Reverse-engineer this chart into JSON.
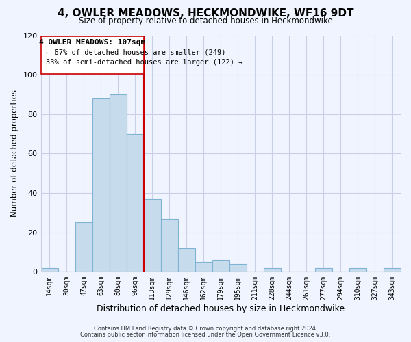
{
  "title": "4, OWLER MEADOWS, HECKMONDWIKE, WF16 9DT",
  "subtitle": "Size of property relative to detached houses in Heckmondwike",
  "xlabel": "Distribution of detached houses by size in Heckmondwike",
  "ylabel": "Number of detached properties",
  "bar_labels": [
    "14sqm",
    "30sqm",
    "47sqm",
    "63sqm",
    "80sqm",
    "96sqm",
    "113sqm",
    "129sqm",
    "146sqm",
    "162sqm",
    "179sqm",
    "195sqm",
    "211sqm",
    "228sqm",
    "244sqm",
    "261sqm",
    "277sqm",
    "294sqm",
    "310sqm",
    "327sqm",
    "343sqm"
  ],
  "bar_values": [
    2,
    0,
    25,
    88,
    90,
    70,
    37,
    27,
    12,
    5,
    6,
    4,
    0,
    2,
    0,
    0,
    2,
    0,
    2,
    0,
    2
  ],
  "bar_color": "#c6dcec",
  "bar_edge_color": "#7fb3d3",
  "vline_color": "#cc0000",
  "ylim": [
    0,
    120
  ],
  "yticks": [
    0,
    20,
    40,
    60,
    80,
    100,
    120
  ],
  "annotation_title": "4 OWLER MEADOWS: 107sqm",
  "annotation_line1": "← 67% of detached houses are smaller (249)",
  "annotation_line2": "33% of semi-detached houses are larger (122) →",
  "footnote1": "Contains HM Land Registry data © Crown copyright and database right 2024.",
  "footnote2": "Contains public sector information licensed under the Open Government Licence v3.0.",
  "background_color": "#f0f4ff",
  "grid_color": "#c8d0e8"
}
